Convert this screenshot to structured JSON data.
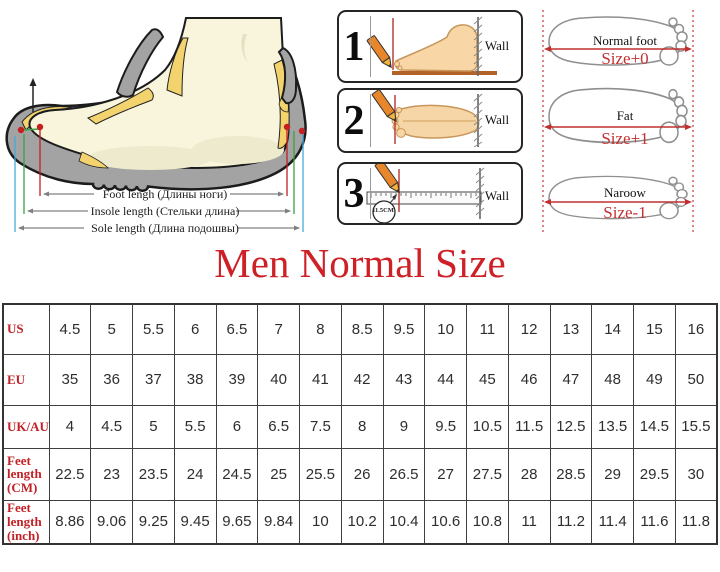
{
  "title": {
    "text": "Men Normal Size",
    "color": "#cd2127"
  },
  "measure_diagram": {
    "labels": [
      {
        "label": "Foot lengh (Длины ноги)",
        "line_color": "#c42020"
      },
      {
        "label": "Insole length (Стельки длина)",
        "line_color": "#3aa344"
      },
      {
        "label": "Sole length (Длина подошвы)",
        "line_color": "#4aa7d8"
      }
    ]
  },
  "steps": {
    "items": [
      {
        "number": "1",
        "wall_label": "Wall"
      },
      {
        "number": "2",
        "wall_label": "Wall"
      },
      {
        "number": "3",
        "wall_label": "Wall",
        "measurement_note": "11.5CM"
      }
    ]
  },
  "foot_types": {
    "size_color": "#c53030",
    "items": [
      {
        "name": "Normal foot",
        "size": "Size+0"
      },
      {
        "name": "Fat",
        "size": "Size+1"
      },
      {
        "name": "Naroow",
        "size": "Size-1"
      }
    ]
  },
  "chart_data": {
    "type": "table",
    "title": "Men Normal Size",
    "rows": [
      {
        "label": "US",
        "values": [
          "4.5",
          "5",
          "5.5",
          "6",
          "6.5",
          "7",
          "8",
          "8.5",
          "9.5",
          "10",
          "11",
          "12",
          "13",
          "14",
          "15",
          "16"
        ]
      },
      {
        "label": "EU",
        "values": [
          "35",
          "36",
          "37",
          "38",
          "39",
          "40",
          "41",
          "42",
          "43",
          "44",
          "45",
          "46",
          "47",
          "48",
          "49",
          "50"
        ]
      },
      {
        "label": "UK/AU",
        "values": [
          "4",
          "4.5",
          "5",
          "5.5",
          "6",
          "6.5",
          "7.5",
          "8",
          "9",
          "9.5",
          "10.5",
          "11.5",
          "12.5",
          "13.5",
          "14.5",
          "15.5"
        ]
      },
      {
        "label": "Feet length (CM)",
        "values": [
          "22.5",
          "23",
          "23.5",
          "24",
          "24.5",
          "25",
          "25.5",
          "26",
          "26.5",
          "27",
          "27.5",
          "28",
          "28.5",
          "29",
          "29.5",
          "30"
        ]
      },
      {
        "label": "Feet length (inch)",
        "values": [
          "8.86",
          "9.06",
          "9.25",
          "9.45",
          "9.65",
          "9.84",
          "10",
          "10.2",
          "10.4",
          "10.6",
          "10.8",
          "11",
          "11.2",
          "11.4",
          "11.6",
          "11.8"
        ]
      }
    ]
  }
}
